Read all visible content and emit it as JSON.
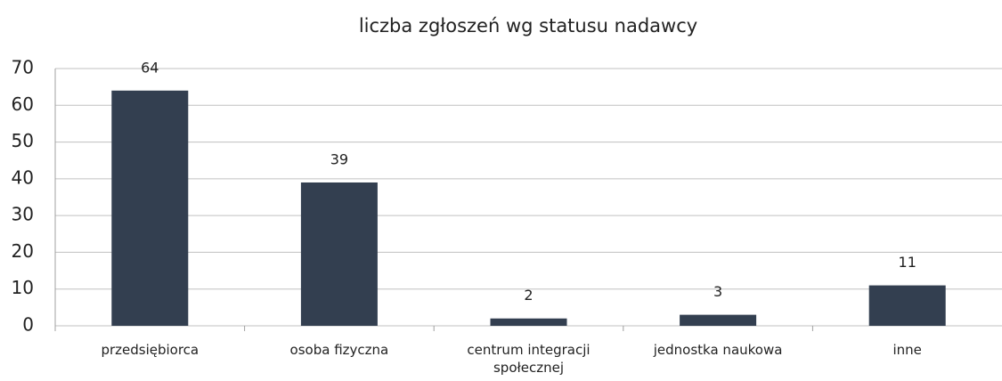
{
  "chart_data": {
    "type": "bar",
    "title": "liczba zgłoszeń wg statusu nadawcy",
    "categories": [
      "przedsiębiorca",
      "osoba fizyczna",
      "centrum integracji społecznej",
      "jednostka naukowa",
      "inne"
    ],
    "values": [
      64,
      39,
      2,
      3,
      11
    ],
    "color": "#333f50",
    "ylim": [
      0,
      70
    ],
    "yticks": [
      0,
      10,
      20,
      30,
      40,
      50,
      60,
      70
    ],
    "grid": true
  }
}
